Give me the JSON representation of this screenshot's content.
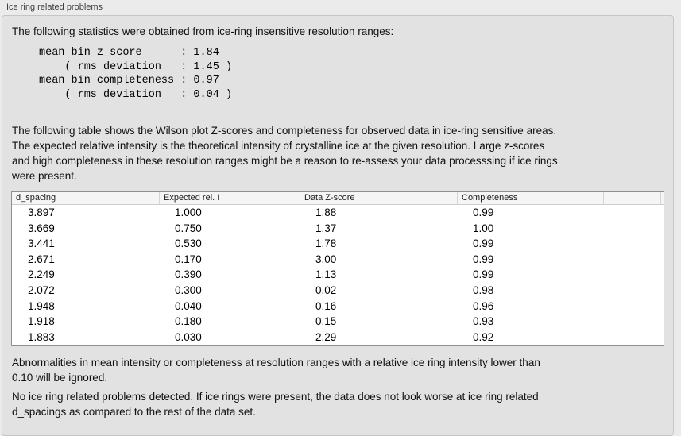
{
  "panel": {
    "title": "Ice ring related problems"
  },
  "sections": {
    "intro": "The following statistics were obtained from ice-ring insensitive resolution ranges:",
    "stats_block": "mean bin z_score      : 1.84\n    ( rms deviation   : 1.45 )\nmean bin completeness : 0.97\n    ( rms deviation   : 0.04 )",
    "table_description": "The following table shows the Wilson plot Z-scores and completeness for observed data in ice-ring sensitive areas.\nThe expected relative intensity is the theoretical intensity of crystalline ice at the given resolution. Large z-scores\nand high completeness in these resolution ranges might be a reason to re-assess your data processsing if ice rings\nwere present.",
    "ignore_note": "Abnormalities in mean intensity or completeness at resolution ranges with a relative ice ring intensity lower than\n0.10 will be ignored.",
    "conclusion": "No ice ring related problems detected. If ice rings were present, the data does not look worse at ice ring related\nd_spacings as compared to the rest of the data set."
  },
  "table": {
    "columns": [
      "d_spacing",
      "Expected rel. I",
      "Data Z-score",
      "Completeness"
    ],
    "rows": [
      [
        "3.897",
        "1.000",
        "1.88",
        "0.99"
      ],
      [
        "3.669",
        "0.750",
        "1.37",
        "1.00"
      ],
      [
        "3.441",
        "0.530",
        "1.78",
        "0.99"
      ],
      [
        "2.671",
        "0.170",
        "3.00",
        "0.99"
      ],
      [
        "2.249",
        "0.390",
        "1.13",
        "0.99"
      ],
      [
        "2.072",
        "0.300",
        "0.02",
        "0.98"
      ],
      [
        "1.948",
        "0.040",
        "0.16",
        "0.96"
      ],
      [
        "1.918",
        "0.180",
        "0.15",
        "0.93"
      ],
      [
        "1.883",
        "0.030",
        "2.29",
        "0.92"
      ]
    ]
  }
}
